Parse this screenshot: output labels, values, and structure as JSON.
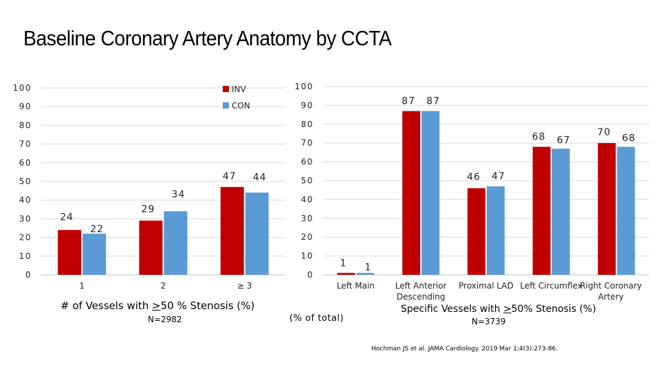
{
  "slide": {
    "title": "Baseline Coronary Artery Anatomy by CCTA",
    "pct_label": "(% of total)",
    "citation": "Hochman JS et al. JAMA Cardiology. 2019 Mar 1;4(3):273-86."
  },
  "colors": {
    "INV": "#C00000",
    "CON": "#5B9BD5",
    "grid": "#D9D9D9",
    "axis": "#BFBFBF"
  },
  "chart_data": [
    {
      "type": "bar",
      "title": "",
      "caption_prefix": "# of Vessels with ",
      "caption_underlined": ">",
      "caption_suffix": "50 % Stenosis (%)",
      "n_label": "N=2982",
      "categories": [
        "1",
        "2",
        "≥ 3"
      ],
      "series": [
        {
          "name": "INV",
          "values": [
            24,
            29,
            47
          ]
        },
        {
          "name": "CON",
          "values": [
            22,
            34,
            44
          ]
        }
      ],
      "ylim": [
        0,
        100
      ],
      "yticks": [
        "0",
        "10",
        "20",
        "30",
        "40",
        "50",
        "60",
        "70",
        "80",
        "90",
        "100"
      ],
      "grid": true,
      "legend": "top-right"
    },
    {
      "type": "bar",
      "title": "",
      "caption_prefix": "Specific Vessels with ",
      "caption_underlined": ">",
      "caption_suffix": "50% Stenosis (%)",
      "n_label": "N=3739",
      "categories": [
        [
          "Left Main"
        ],
        [
          "Left Anterior",
          "Descending"
        ],
        [
          "Proximal LAD"
        ],
        [
          "Left Circumflex"
        ],
        [
          "Right Coronary",
          "Artery"
        ]
      ],
      "series": [
        {
          "name": "INV",
          "values": [
            1,
            87,
            46,
            68,
            70
          ]
        },
        {
          "name": "CON",
          "values": [
            1,
            87,
            47,
            67,
            68
          ]
        }
      ],
      "ylim": [
        0,
        100
      ],
      "yticks": [
        "0",
        "10",
        "20",
        "30",
        "40",
        "50",
        "60",
        "70",
        "80",
        "90",
        "100"
      ],
      "grid": true,
      "legend": "none"
    }
  ]
}
